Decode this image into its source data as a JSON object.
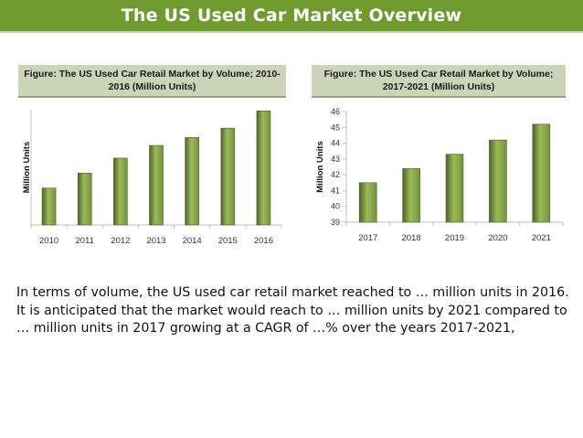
{
  "page_title": "The US Used Car Market Overview",
  "colors": {
    "title_bg": "#6f9a2e",
    "header_bg": "#ccd3b8",
    "bar": "#76923c",
    "bar_highlight": "#9bbb59",
    "bar_dark": "#4f6228"
  },
  "figures": [
    {
      "header": "Figure: The US Used Car Retail Market by Volume; 2010-2016  (Million Units)"
    },
    {
      "header": "Figure: The US Used Car Retail Market by Volume; 2017-2021 (Million Units)"
    }
  ],
  "chart_data": [
    {
      "type": "bar",
      "title": "Figure: The US Used Car Retail Market by Volume; 2010-2016  (Million Units)",
      "categories": [
        "2010",
        "2011",
        "2012",
        "2013",
        "2014",
        "2015",
        "2016"
      ],
      "values": [
        32,
        45,
        58,
        69,
        76,
        84,
        99
      ],
      "ylabel": "Million Units",
      "xlabel": "",
      "ylim": [
        0,
        100
      ],
      "y_ticks_shown": false,
      "gridlines": false,
      "note": "values are relative estimates; y-axis is unlabeled in the original"
    },
    {
      "type": "bar",
      "title": "Figure: The US Used Car Retail Market by Volume; 2017-2021 (Million Units)",
      "categories": [
        "2017",
        "2018",
        "2019",
        "2020",
        "2021"
      ],
      "values": [
        41.5,
        42.4,
        43.3,
        44.2,
        45.2
      ],
      "y_ticks": [
        "39",
        "40",
        "41",
        "42",
        "43",
        "44",
        "45",
        "46"
      ],
      "ylabel": "Million Units",
      "xlabel": "",
      "ylim": [
        39,
        46
      ],
      "gridlines": false
    }
  ],
  "paragraph": "In terms of volume, the US used car retail market reached to … million units in 2016. It is anticipated that the market would reach to … million units by 2021 compared to … million units in 2017 growing at a CAGR of …% over the years 2017-2021,"
}
